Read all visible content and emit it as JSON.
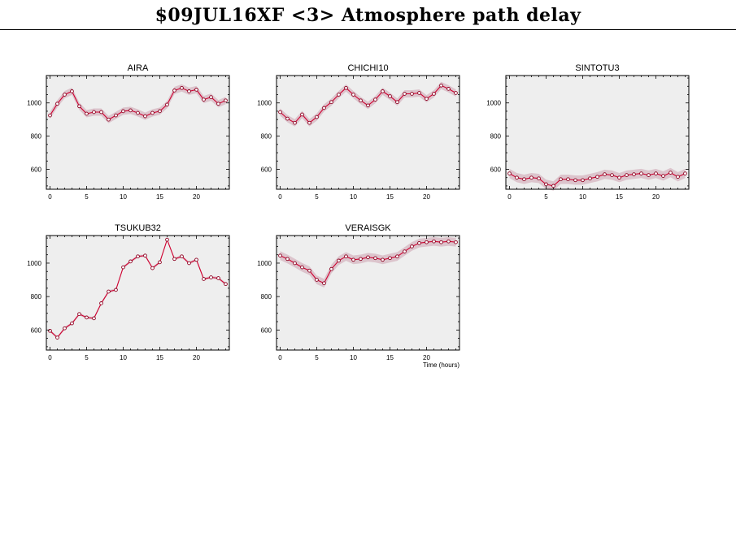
{
  "page": {
    "title": "$09JUL16XF <3>  Atmosphere path delay",
    "x_axis_label": "Time (hours)"
  },
  "style": {
    "panel_background": "#eeeeee",
    "band_color": "#dcc4cc",
    "line_color": "#d00030",
    "marker_color": "#8b0020"
  },
  "chart_data": [
    {
      "type": "line",
      "title": "AIRA",
      "xlabel": "",
      "ylabel": "",
      "xlim": [
        -0.5,
        24.5
      ],
      "ylim": [
        480,
        1165
      ],
      "xticks": [
        0,
        5,
        10,
        15,
        20
      ],
      "yticks": [
        600,
        800,
        1000
      ],
      "x": [
        0,
        1,
        2,
        3,
        4,
        5,
        6,
        7,
        8,
        9,
        10,
        11,
        12,
        13,
        14,
        15,
        16,
        17,
        18,
        19,
        20,
        21,
        22,
        23,
        24
      ],
      "values": [
        925,
        995,
        1050,
        1070,
        980,
        935,
        945,
        945,
        900,
        925,
        950,
        955,
        940,
        920,
        940,
        950,
        990,
        1075,
        1090,
        1070,
        1080,
        1020,
        1035,
        995,
        1015
      ],
      "band": 22
    },
    {
      "type": "line",
      "title": "CHICHI10",
      "xlabel": "",
      "ylabel": "",
      "xlim": [
        -0.5,
        24.5
      ],
      "ylim": [
        480,
        1165
      ],
      "xticks": [
        0,
        5,
        10,
        15,
        20
      ],
      "yticks": [
        600,
        800,
        1000
      ],
      "x": [
        0,
        1,
        2,
        3,
        4,
        5,
        6,
        7,
        8,
        9,
        10,
        11,
        12,
        13,
        14,
        15,
        16,
        17,
        18,
        19,
        20,
        21,
        22,
        23,
        24
      ],
      "values": [
        945,
        905,
        880,
        930,
        880,
        915,
        970,
        1005,
        1050,
        1090,
        1050,
        1015,
        985,
        1020,
        1070,
        1040,
        1005,
        1055,
        1055,
        1060,
        1025,
        1055,
        1105,
        1085,
        1060
      ],
      "band": 22
    },
    {
      "type": "line",
      "title": "SINTOTU3",
      "xlabel": "",
      "ylabel": "",
      "xlim": [
        -0.5,
        24.5
      ],
      "ylim": [
        480,
        1165
      ],
      "xticks": [
        0,
        5,
        10,
        15,
        20
      ],
      "yticks": [
        600,
        800,
        1000
      ],
      "x": [
        0,
        1,
        2,
        3,
        4,
        5,
        6,
        7,
        8,
        9,
        10,
        11,
        12,
        13,
        14,
        15,
        16,
        17,
        18,
        19,
        20,
        21,
        22,
        23,
        24
      ],
      "values": [
        575,
        550,
        540,
        550,
        545,
        510,
        500,
        540,
        540,
        535,
        535,
        545,
        555,
        570,
        565,
        550,
        565,
        570,
        575,
        565,
        575,
        560,
        580,
        555,
        575
      ],
      "band": 28
    },
    {
      "type": "line",
      "title": "TSUKUB32",
      "xlabel": "",
      "ylabel": "",
      "xlim": [
        -0.5,
        24.5
      ],
      "ylim": [
        480,
        1165
      ],
      "xticks": [
        0,
        5,
        10,
        15,
        20
      ],
      "yticks": [
        600,
        800,
        1000
      ],
      "x": [
        0,
        1,
        2,
        3,
        4,
        5,
        6,
        7,
        8,
        9,
        10,
        11,
        12,
        13,
        14,
        15,
        16,
        17,
        18,
        19,
        20,
        21,
        22,
        23,
        24
      ],
      "values": [
        595,
        555,
        610,
        640,
        695,
        675,
        670,
        760,
        830,
        840,
        975,
        1010,
        1040,
        1045,
        970,
        1005,
        1140,
        1025,
        1040,
        1000,
        1020,
        905,
        915,
        910,
        875
      ],
      "band": 8
    },
    {
      "type": "line",
      "title": "VERAISGK",
      "xlabel": "Time (hours)",
      "ylabel": "",
      "xlim": [
        -0.5,
        24.5
      ],
      "ylim": [
        480,
        1165
      ],
      "xticks": [
        0,
        5,
        10,
        15,
        20
      ],
      "yticks": [
        600,
        800,
        1000
      ],
      "x": [
        0,
        1,
        2,
        3,
        4,
        5,
        6,
        7,
        8,
        9,
        10,
        11,
        12,
        13,
        14,
        15,
        16,
        17,
        18,
        19,
        20,
        21,
        22,
        23,
        24
      ],
      "values": [
        1045,
        1025,
        1000,
        975,
        955,
        900,
        880,
        965,
        1015,
        1040,
        1020,
        1025,
        1035,
        1030,
        1020,
        1030,
        1040,
        1070,
        1100,
        1120,
        1125,
        1130,
        1125,
        1130,
        1125
      ],
      "band": 26
    }
  ]
}
